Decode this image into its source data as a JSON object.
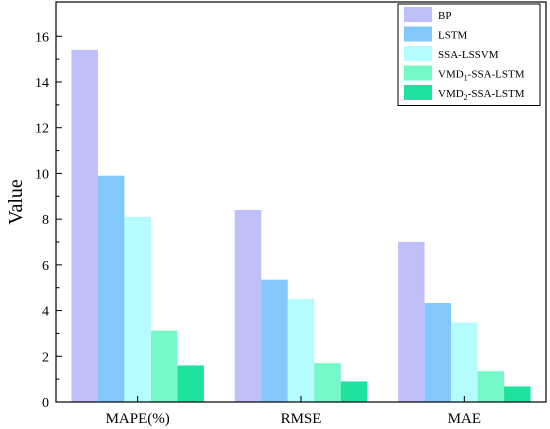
{
  "chart_data": {
    "type": "bar",
    "title": "",
    "xlabel": "",
    "ylabel": "Value",
    "ylim": [
      0,
      17.5
    ],
    "yticks": [
      0,
      2,
      4,
      6,
      8,
      10,
      12,
      14,
      16
    ],
    "grid": false,
    "legend_position": "top-right",
    "categories": [
      "MAPE(%)",
      "RMSE",
      "MAE"
    ],
    "series": [
      {
        "name": "BP",
        "color": "#bfc0f8",
        "values": [
          15.4,
          8.4,
          7.0
        ]
      },
      {
        "name": "LSTM",
        "color": "#82c8fb",
        "values": [
          9.9,
          5.35,
          4.33
        ]
      },
      {
        "name": "SSA-LSSVM",
        "color": "#b4fcfd",
        "values": [
          8.1,
          4.5,
          3.48
        ]
      },
      {
        "name": "VMD1-SSA-LSTM",
        "name_main": "VMD",
        "name_sub": "1",
        "name_rest": "-SSA-LSTM",
        "color": "#75f8c8",
        "values": [
          3.12,
          1.7,
          1.35
        ]
      },
      {
        "name": "VMD2-SSA-LSTM",
        "name_main": "VMD",
        "name_sub": "2",
        "name_rest": "-SSA-LSTM",
        "color": "#1de39f",
        "values": [
          1.6,
          0.9,
          0.68
        ]
      }
    ]
  }
}
